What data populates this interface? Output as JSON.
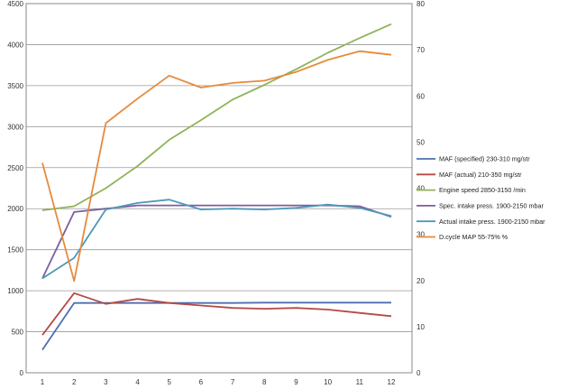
{
  "chart_data": {
    "type": "line",
    "x": [
      1,
      2,
      3,
      4,
      5,
      6,
      7,
      8,
      9,
      10,
      11,
      12
    ],
    "y_left_ticks": [
      "0",
      "500",
      "1000",
      "1500",
      "2000",
      "2500",
      "3000",
      "3500",
      "4000",
      "4500"
    ],
    "y_right_ticks": [
      "0",
      "10",
      "20",
      "30",
      "40",
      "50",
      "60",
      "70",
      "80"
    ],
    "x_ticks": [
      "1",
      "2",
      "3",
      "4",
      "5",
      "6",
      "7",
      "8",
      "9",
      "10",
      "11",
      "12"
    ],
    "ylim_left": [
      0,
      4500
    ],
    "ylim_right": [
      0,
      80
    ],
    "grid": "horizontal",
    "legend_position": "right",
    "series": [
      {
        "name": "MAF (specified) 230-310  mg/str",
        "color": "#4f6fb0",
        "axis": "left",
        "values": [
          280,
          850,
          850,
          850,
          850,
          850,
          850,
          855,
          855,
          855,
          855,
          855
        ]
      },
      {
        "name": "MAF (actual) 210-350  mg/str",
        "color": "#b54a45",
        "axis": "left",
        "values": [
          460,
          970,
          840,
          900,
          850,
          820,
          790,
          780,
          790,
          770,
          730,
          690
        ]
      },
      {
        "name": "Engine speed 2850-3150  /min",
        "color": "#8fb35a",
        "axis": "left",
        "values": [
          1980,
          2030,
          2250,
          2520,
          2840,
          3080,
          3330,
          3510,
          3700,
          3900,
          4080,
          4250
        ]
      },
      {
        "name": "Spec. intake press. 1900-2150  mbar",
        "color": "#7b5e9c",
        "axis": "left",
        "values": [
          1150,
          1960,
          2000,
          2040,
          2040,
          2040,
          2040,
          2040,
          2040,
          2040,
          2030,
          1900
        ]
      },
      {
        "name": "Actual intake press. 1900-2150  mbar",
        "color": "#4f97b8",
        "axis": "left",
        "values": [
          1150,
          1400,
          1990,
          2070,
          2110,
          1990,
          2000,
          1990,
          2010,
          2050,
          2010,
          1910
        ]
      },
      {
        "name": "D.cycle MAP 55-75%  %",
        "color": "#e68a3d",
        "axis": "right",
        "values": [
          45.5,
          19.9,
          54.1,
          59.4,
          64.4,
          61.8,
          62.8,
          63.3,
          65.2,
          67.8,
          69.7,
          68.9
        ]
      }
    ]
  }
}
